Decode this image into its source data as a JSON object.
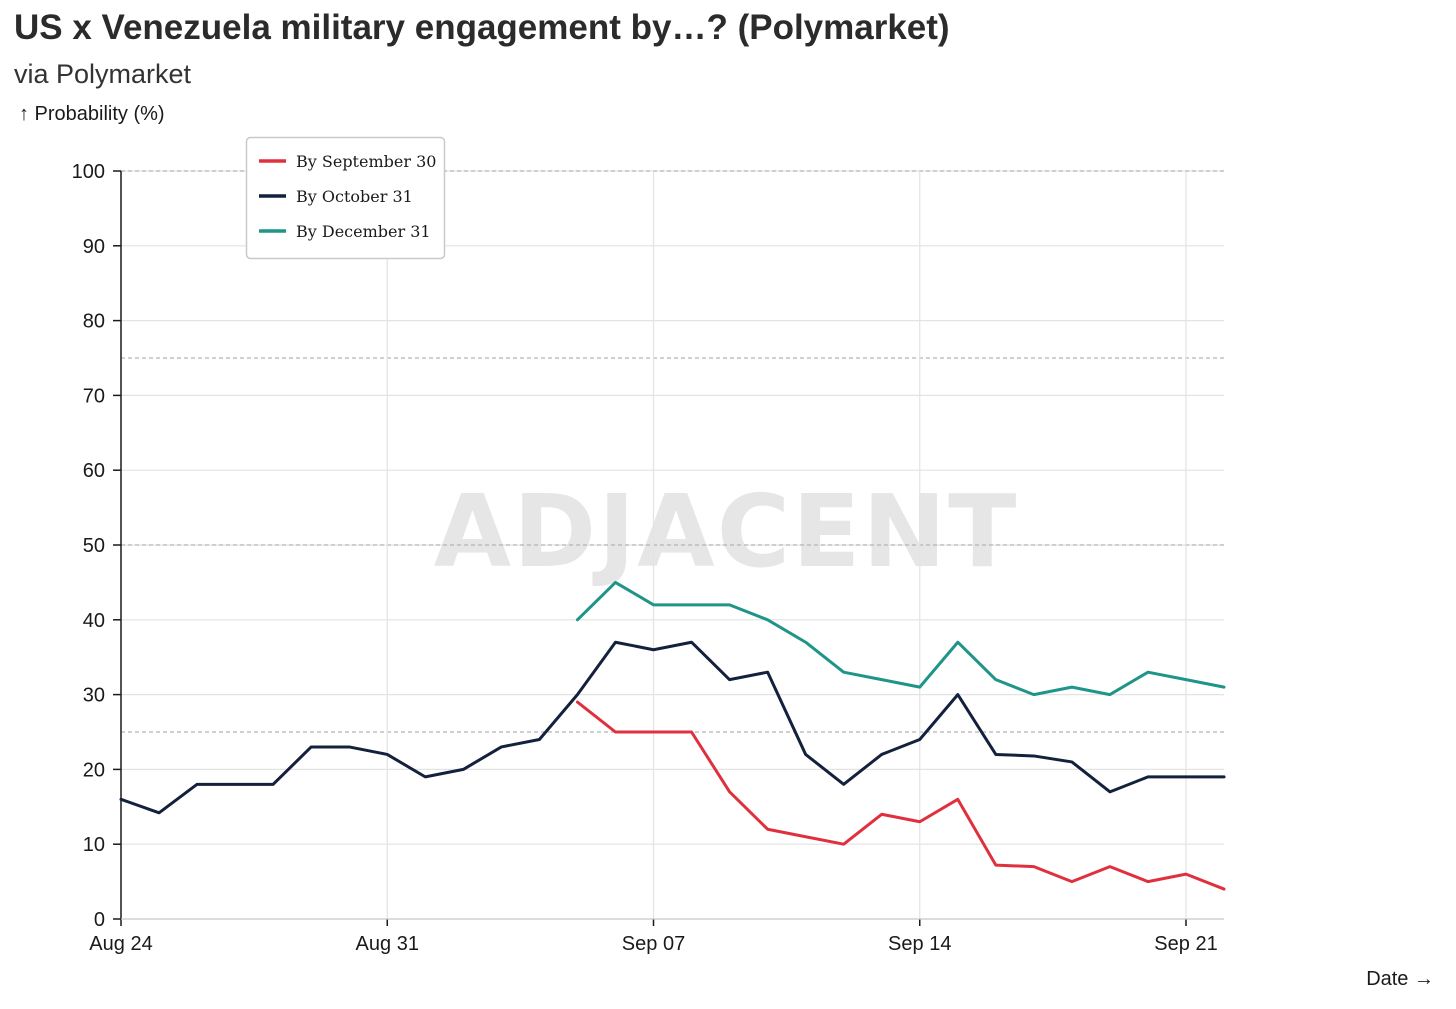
{
  "title": "US x Venezuela military engagement by…? (Polymarket)",
  "subtitle": "via Polymarket",
  "watermark": "ADJACENT",
  "chart_data": {
    "type": "line",
    "title": "US x Venezuela military engagement by…? (Polymarket)",
    "subtitle": "via Polymarket",
    "ylabel": "↑ Probability (%)",
    "xlabel": "Date →",
    "ylim": [
      0,
      100
    ],
    "yticks": [
      0,
      10,
      20,
      30,
      40,
      50,
      60,
      70,
      80,
      90,
      100
    ],
    "xlim": [
      "Aug 24",
      "Sep 22"
    ],
    "xticks": [
      "Aug 24",
      "Aug 31",
      "Sep 07",
      "Sep 14",
      "Sep 21"
    ],
    "grid": true,
    "reference_lines": [
      25,
      50,
      75,
      100
    ],
    "legend_position": "top-left",
    "x": [
      "Aug 24",
      "Aug 25",
      "Aug 26",
      "Aug 27",
      "Aug 28",
      "Aug 29",
      "Aug 30",
      "Aug 31",
      "Sep 01",
      "Sep 02",
      "Sep 03",
      "Sep 04",
      "Sep 05",
      "Sep 06",
      "Sep 07",
      "Sep 08",
      "Sep 09",
      "Sep 10",
      "Sep 11",
      "Sep 12",
      "Sep 13",
      "Sep 14",
      "Sep 15",
      "Sep 16",
      "Sep 17",
      "Sep 18",
      "Sep 19",
      "Sep 20",
      "Sep 21",
      "Sep 22"
    ],
    "series": [
      {
        "name": "By September 30",
        "color": "#e0303e",
        "values": [
          null,
          null,
          null,
          null,
          null,
          null,
          null,
          null,
          null,
          null,
          null,
          null,
          29,
          25,
          25,
          25,
          17,
          12,
          11,
          10,
          14,
          13,
          16,
          7.2,
          7,
          5,
          7,
          5,
          6,
          4
        ]
      },
      {
        "name": "By October 31",
        "color": "#14213d",
        "values": [
          16,
          14.2,
          18,
          18,
          18,
          23,
          23,
          22,
          19,
          20,
          23,
          24,
          30,
          37,
          36,
          37,
          32,
          33,
          22,
          18,
          22,
          24,
          30,
          22,
          21.8,
          21,
          17,
          19,
          19,
          19
        ]
      },
      {
        "name": "By December 31",
        "color": "#1f9488",
        "values": [
          null,
          null,
          null,
          null,
          null,
          null,
          null,
          null,
          null,
          null,
          null,
          null,
          40,
          45,
          42,
          42,
          42,
          40,
          37,
          33,
          32,
          31,
          37,
          32,
          30,
          31,
          30,
          33,
          32,
          31
        ]
      }
    ]
  }
}
